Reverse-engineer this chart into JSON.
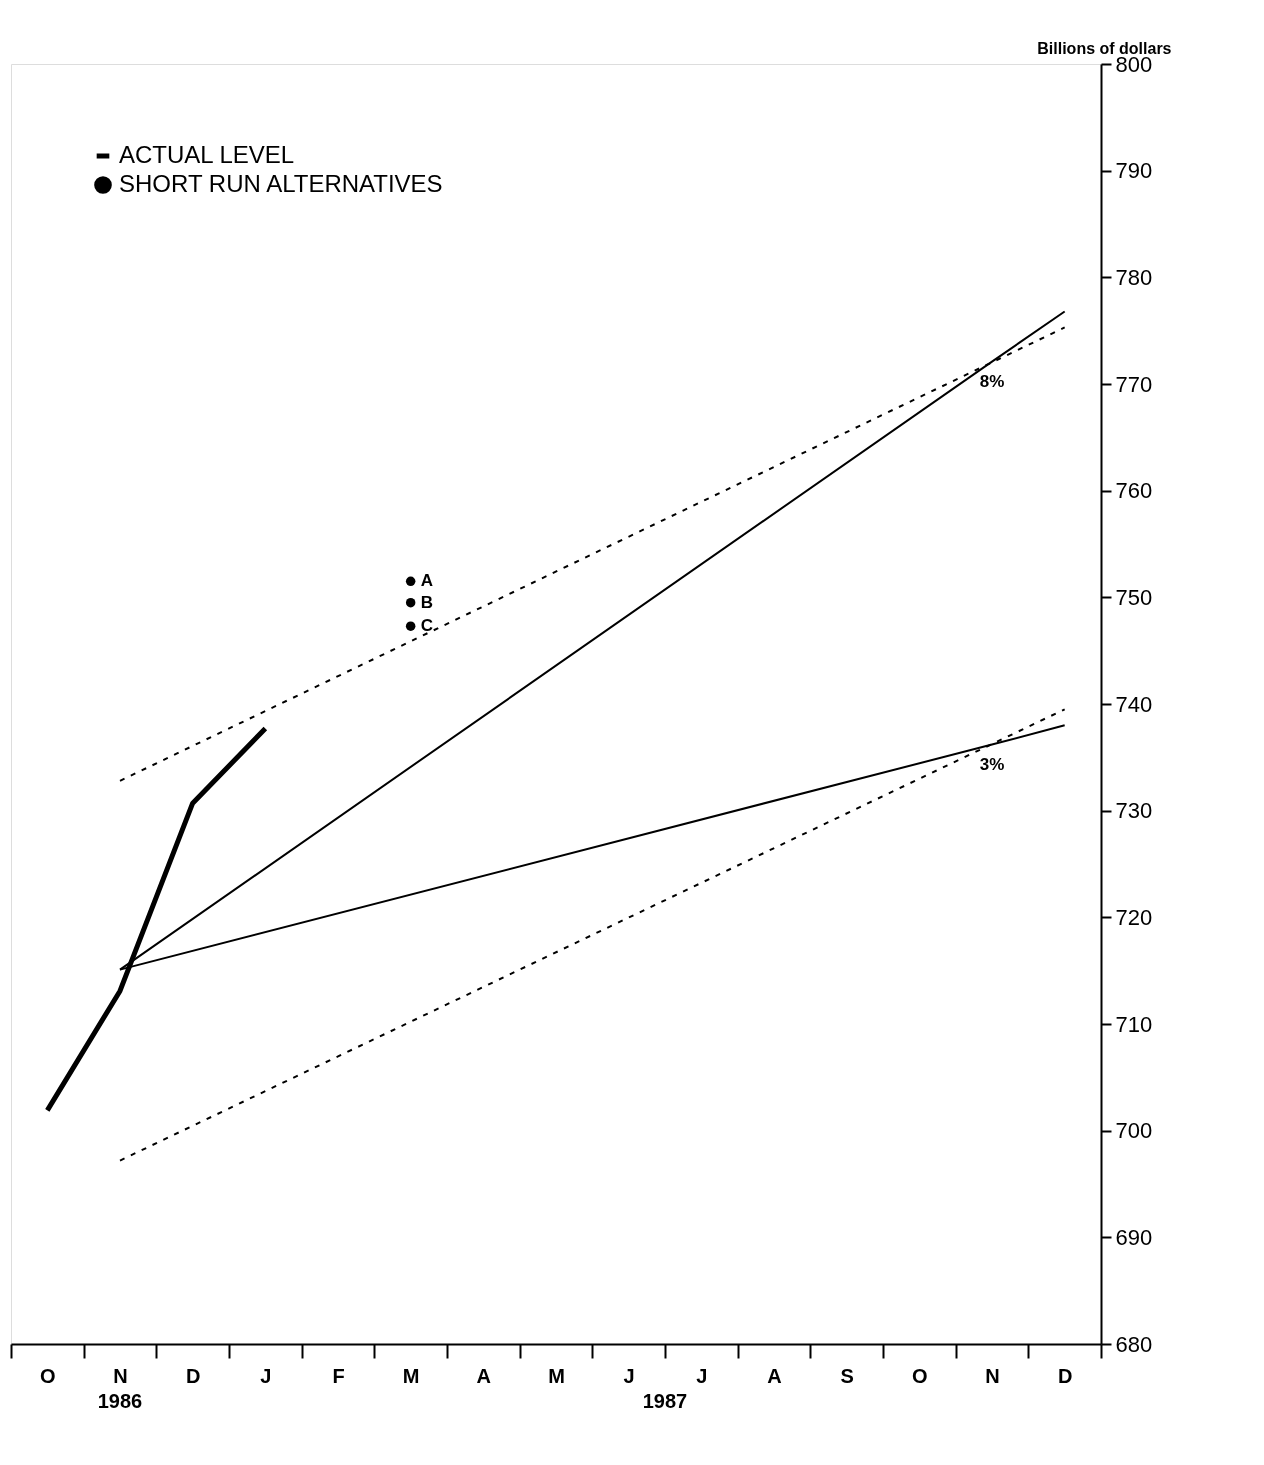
{
  "chart_data": {
    "type": "line",
    "ylabel": "Billions of dollars",
    "categories": [
      "O",
      "N",
      "D",
      "J",
      "F",
      "M",
      "A",
      "M",
      "J",
      "J",
      "A",
      "S",
      "O",
      "N",
      "D"
    ],
    "ylim": [
      680,
      800
    ],
    "yticks": [
      680,
      690,
      700,
      710,
      720,
      730,
      740,
      750,
      760,
      770,
      780,
      790,
      800
    ],
    "grid": false,
    "legend": "top left",
    "series": [
      {
        "name": "ACTUAL LEVEL",
        "color": "#000000",
        "values": [
          701.9,
          713.1,
          730.7,
          737.7,
          null,
          null,
          null,
          null,
          null,
          null,
          null,
          null,
          null,
          null,
          null
        ]
      },
      {
        "name": "8%",
        "color": "#000000",
        "values": [
          null,
          715.1,
          null,
          null,
          null,
          null,
          null,
          null,
          null,
          null,
          null,
          null,
          null,
          772.1,
          776.8
        ]
      },
      {
        "name": "3%",
        "color": "#000000",
        "values": [
          null,
          715.1,
          null,
          null,
          null,
          null,
          null,
          null,
          null,
          null,
          null,
          null,
          null,
          736.2,
          738.0
        ]
      },
      {
        "color": "#000000",
        "line_style": "dotted",
        "values": [
          null,
          732.8,
          null,
          null,
          null,
          null,
          null,
          null,
          null,
          null,
          null,
          null,
          null,
          null,
          775.3
        ]
      },
      {
        "color": "#000000",
        "line_style": "dotted",
        "values": [
          null,
          697.2,
          null,
          null,
          null,
          null,
          null,
          null,
          null,
          null,
          null,
          null,
          null,
          null,
          739.5
        ]
      },
      {
        "name": "SHORT RUN ALTERNATIVES",
        "type": "scatter",
        "marker": "circle",
        "color": "#000000",
        "x": [
          "M",
          "M",
          "M"
        ],
        "values": [
          751.5,
          749.5,
          747.3
        ]
      }
    ],
    "annotations": [
      {
        "text": "A",
        "x": "M",
        "y": 751.5
      },
      {
        "text": "B",
        "x": "M",
        "y": 749.5
      },
      {
        "text": "C",
        "x": "M",
        "y": 747.3
      },
      "1986",
      "1987"
    ]
  }
}
